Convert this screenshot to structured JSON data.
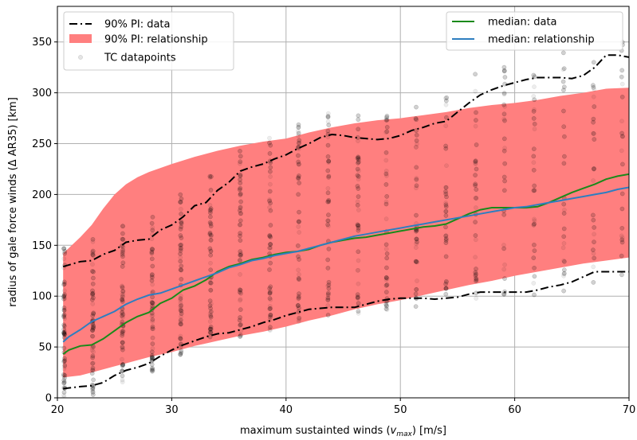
{
  "chart_data": {
    "type": "line",
    "xlabel": {
      "prefix": "maximum sustainted winds (",
      "var": "v",
      "sub": "max",
      "suffix": ") [m/s]"
    },
    "ylabel": "radius of gale force winds (Δ AR35) [km]",
    "xlim": [
      20,
      70
    ],
    "ylim": [
      0,
      385
    ],
    "xticks": [
      20,
      30,
      40,
      50,
      60,
      70
    ],
    "yticks": [
      0,
      50,
      100,
      150,
      200,
      250,
      300,
      350
    ],
    "grid": true,
    "legend_left": {
      "placement": "top-left",
      "entries": [
        "90% PI: data",
        "90% PI: relationship",
        "TC datapoints"
      ]
    },
    "legend_right": {
      "placement": "top-right",
      "entries": [
        "median: data",
        "median: relationship"
      ]
    },
    "colors": {
      "pi_data": "#000000",
      "pi_band": "#ff7f7f",
      "median_data": "#1a8a1a",
      "median_rel": "#2e7ec0",
      "datapoints": "#000000"
    },
    "pi_relationship_band": {
      "x": [
        20.5,
        22,
        23,
        24,
        25,
        26,
        27,
        28,
        30,
        32,
        34,
        36,
        38,
        40,
        42,
        44,
        46,
        48,
        50,
        52,
        54,
        56,
        58,
        60,
        62,
        64,
        66,
        68,
        70
      ],
      "upper": [
        142,
        158,
        170,
        186,
        200,
        210,
        217,
        222,
        230,
        237,
        243,
        248,
        252,
        255,
        261,
        266,
        270,
        273,
        275,
        278,
        281,
        285,
        288,
        290,
        293,
        297,
        300,
        304,
        305
      ],
      "lower": [
        20,
        22,
        25,
        28,
        31,
        34,
        37,
        40,
        45,
        51,
        56,
        61,
        65,
        70,
        76,
        81,
        87,
        92,
        96,
        101,
        106,
        111,
        115,
        120,
        124,
        128,
        132,
        135,
        138
      ]
    },
    "series": [
      {
        "name": "90% PI: data",
        "style": "dashdot",
        "x": [
          20.5,
          22,
          23,
          24,
          25,
          26,
          27,
          28,
          29,
          30,
          31,
          32,
          33,
          34,
          35,
          36,
          37,
          38,
          39,
          40,
          41,
          42,
          43,
          44,
          45,
          46,
          47,
          48,
          49,
          50,
          51,
          52,
          53,
          54,
          55,
          56,
          57,
          58,
          59,
          60,
          61,
          62,
          63,
          64,
          65,
          66,
          67,
          68,
          69,
          70
        ],
        "values": [
          129,
          134,
          135,
          141,
          145,
          153,
          155,
          156,
          165,
          170,
          178,
          189,
          192,
          204,
          212,
          223,
          227,
          230,
          235,
          239,
          245,
          250,
          256,
          259,
          258,
          256,
          255,
          254,
          255,
          258,
          263,
          266,
          270,
          272,
          281,
          290,
          298,
          303,
          307,
          310,
          313,
          315,
          315,
          315,
          314,
          317,
          325,
          337,
          337,
          335
        ]
      },
      {
        "name": "90% PI: data",
        "style": "dashdot",
        "x": [
          20.5,
          22,
          23,
          24,
          25,
          26,
          27,
          28,
          29,
          30,
          31,
          32,
          33,
          34,
          35,
          36,
          37,
          38,
          39,
          40,
          41,
          42,
          43,
          44,
          45,
          46,
          47,
          48,
          49,
          50,
          51,
          52,
          53,
          54,
          55,
          56,
          57,
          58,
          59,
          60,
          61,
          62,
          63,
          64,
          65,
          66,
          67,
          68,
          69,
          70
        ],
        "values": [
          9,
          11,
          12,
          15,
          22,
          27,
          30,
          34,
          41,
          47,
          52,
          56,
          60,
          63,
          64,
          67,
          70,
          74,
          77,
          81,
          84,
          87,
          88,
          89,
          89,
          89,
          92,
          95,
          97,
          98,
          98,
          98,
          97,
          98,
          99,
          102,
          104,
          104,
          104,
          104,
          104,
          106,
          109,
          111,
          114,
          119,
          124,
          124,
          124,
          124
        ]
      },
      {
        "name": "median: data",
        "style": "solid",
        "x": [
          20.5,
          21,
          22,
          23,
          24,
          25,
          26,
          27,
          28,
          29,
          30,
          31,
          32,
          33,
          34,
          35,
          36,
          37,
          38,
          39,
          40,
          41,
          42,
          43,
          44,
          45,
          46,
          47,
          48,
          49,
          50,
          51,
          52,
          53,
          54,
          55,
          56,
          57,
          58,
          59,
          60,
          61,
          62,
          63,
          64,
          65,
          66,
          67,
          68,
          69,
          70
        ],
        "values": [
          43,
          47,
          51,
          52,
          58,
          66,
          74,
          80,
          84,
          93,
          98,
          106,
          110,
          116,
          124,
          129,
          132,
          136,
          138,
          141,
          143,
          144,
          146,
          150,
          153,
          155,
          157,
          158,
          160,
          162,
          164,
          166,
          168,
          169,
          171,
          176,
          181,
          185,
          187,
          187,
          187,
          187,
          188,
          192,
          197,
          202,
          206,
          210,
          215,
          218,
          220
        ]
      },
      {
        "name": "median: relationship",
        "style": "solid",
        "x": [
          20.5,
          21,
          22,
          23,
          24,
          25,
          26,
          27,
          28,
          29,
          30,
          31,
          32,
          33,
          34,
          35,
          36,
          37,
          38,
          39,
          40,
          41,
          42,
          43,
          44,
          45,
          46,
          47,
          48,
          49,
          50,
          51,
          52,
          53,
          54,
          55,
          56,
          57,
          58,
          59,
          60,
          61,
          62,
          63,
          64,
          65,
          66,
          67,
          68,
          69,
          70
        ],
        "values": [
          55,
          60,
          67,
          75,
          80,
          85,
          92,
          97,
          101,
          103,
          107,
          111,
          115,
          119,
          123,
          128,
          131,
          135,
          137,
          140,
          142,
          144,
          147,
          150,
          153,
          156,
          159,
          161,
          163,
          165,
          167,
          169,
          171,
          173,
          175,
          177,
          179,
          181,
          183,
          185,
          187,
          188,
          190,
          192,
          194,
          196,
          198,
          200,
          202,
          205,
          207
        ]
      }
    ]
  }
}
